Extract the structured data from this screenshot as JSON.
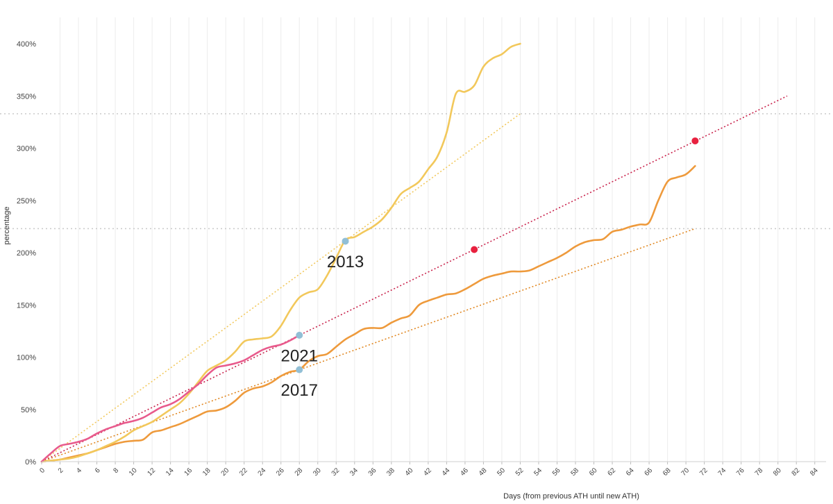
{
  "chart_data": {
    "type": "line",
    "title": "",
    "xlabel": "Days (from previous ATH until new ATH)",
    "ylabel": "percentage",
    "xlim": [
      0,
      85
    ],
    "ylim": [
      0,
      400
    ],
    "x_ticks": [
      0,
      2,
      4,
      6,
      8,
      10,
      12,
      14,
      16,
      18,
      20,
      22,
      24,
      26,
      28,
      30,
      32,
      34,
      36,
      38,
      40,
      42,
      44,
      46,
      48,
      50,
      52,
      54,
      56,
      58,
      60,
      62,
      64,
      66,
      68,
      70,
      72,
      74,
      76,
      78,
      80,
      82,
      84
    ],
    "y_ticks": [
      0,
      50,
      100,
      150,
      200,
      250,
      300,
      350,
      400
    ],
    "y_tick_labels": [
      "0%",
      "50%",
      "100%",
      "150%",
      "200%",
      "250%",
      "300%",
      "350%",
      "400%"
    ],
    "grid": "vertical",
    "colors": {
      "2013": "#f2c85b",
      "2017": "#ee9a3c",
      "2021": "#e85a8c",
      "trend_2021": "#c8204a",
      "marker_red": "#e8213f",
      "marker_blue": "#92bfd6",
      "ref_dashed": "#c9c9c9"
    },
    "series": [
      {
        "name": "2013",
        "x": [
          0,
          1,
          2,
          3,
          4,
          5,
          6,
          7,
          8,
          9,
          10,
          11,
          12,
          13,
          14,
          15,
          16,
          17,
          18,
          19,
          20,
          21,
          22,
          23,
          24,
          25,
          26,
          27,
          28,
          29,
          30,
          31,
          32,
          33,
          34,
          35,
          36,
          37,
          38,
          39,
          40,
          41,
          42,
          43,
          44,
          45,
          46,
          47,
          48,
          49,
          50,
          51,
          52
        ],
        "values": [
          0,
          1,
          2,
          3,
          5,
          8,
          11,
          15,
          19,
          24,
          30,
          34,
          38,
          44,
          50,
          56,
          65,
          76,
          87,
          92,
          97,
          105,
          115,
          117,
          118,
          120,
          130,
          145,
          157,
          162,
          165,
          178,
          195,
          212,
          215,
          220,
          225,
          232,
          243,
          256,
          262,
          268,
          280,
          292,
          315,
          352,
          354,
          360,
          378,
          386,
          390,
          397,
          400
        ]
      },
      {
        "name": "2017",
        "x": [
          0,
          1,
          2,
          3,
          4,
          5,
          6,
          7,
          8,
          9,
          10,
          11,
          12,
          13,
          14,
          15,
          16,
          17,
          18,
          19,
          20,
          21,
          22,
          23,
          24,
          25,
          26,
          27,
          28,
          29,
          30,
          31,
          32,
          33,
          34,
          35,
          36,
          37,
          38,
          39,
          40,
          41,
          42,
          43,
          44,
          45,
          46,
          47,
          48,
          49,
          50,
          51,
          52,
          53,
          54,
          55,
          56,
          57,
          58,
          59,
          60,
          61,
          62,
          63,
          64,
          65,
          66,
          67,
          68,
          69,
          70,
          71
        ],
        "values": [
          0,
          1,
          2,
          4,
          6,
          8,
          11,
          14,
          17,
          19,
          20,
          21,
          28,
          30,
          33,
          36,
          40,
          44,
          48,
          49,
          52,
          58,
          66,
          70,
          72,
          76,
          82,
          86,
          88,
          96,
          101,
          103,
          110,
          117,
          122,
          127,
          128,
          128,
          133,
          137,
          140,
          150,
          154,
          157,
          160,
          161,
          165,
          170,
          175,
          178,
          180,
          182,
          182,
          183,
          187,
          191,
          195,
          200,
          206,
          210,
          212,
          213,
          220,
          222,
          225,
          227,
          229,
          250,
          268,
          272,
          275,
          283
        ]
      },
      {
        "name": "2021",
        "x": [
          0,
          1,
          2,
          3,
          4,
          5,
          6,
          7,
          8,
          9,
          10,
          11,
          12,
          13,
          14,
          15,
          16,
          17,
          18,
          19,
          20,
          21,
          22,
          23,
          24,
          25,
          26,
          27,
          28
        ],
        "values": [
          0,
          8,
          15,
          17,
          19,
          22,
          27,
          31,
          34,
          37,
          39,
          42,
          47,
          52,
          55,
          60,
          67,
          74,
          83,
          90,
          92,
          94,
          97,
          102,
          107,
          110,
          112,
          116,
          121
        ]
      }
    ],
    "trend_lines": [
      {
        "series": "2013",
        "x": [
          0,
          52
        ],
        "values": [
          0,
          333
        ],
        "style": "dotted"
      },
      {
        "series": "2021",
        "x": [
          0,
          81
        ],
        "values": [
          0,
          350
        ],
        "style": "dotted"
      },
      {
        "series": "2017",
        "x": [
          0,
          71
        ],
        "values": [
          0,
          223
        ],
        "style": "dotted"
      }
    ],
    "reference_lines": [
      {
        "y": 333,
        "style": "dashed"
      },
      {
        "y": 223,
        "style": "dashed"
      }
    ],
    "markers": [
      {
        "x": 33,
        "y": 211,
        "color": "blue"
      },
      {
        "x": 28,
        "y": 121,
        "color": "blue"
      },
      {
        "x": 28,
        "y": 88,
        "color": "blue"
      },
      {
        "x": 47,
        "y": 203,
        "color": "red"
      },
      {
        "x": 71,
        "y": 307,
        "color": "red"
      }
    ],
    "annotations": [
      {
        "text": "2013",
        "x": 33,
        "y": 192
      },
      {
        "text": "2021",
        "x": 28,
        "y": 102
      },
      {
        "text": "2017",
        "x": 28,
        "y": 69
      }
    ]
  }
}
